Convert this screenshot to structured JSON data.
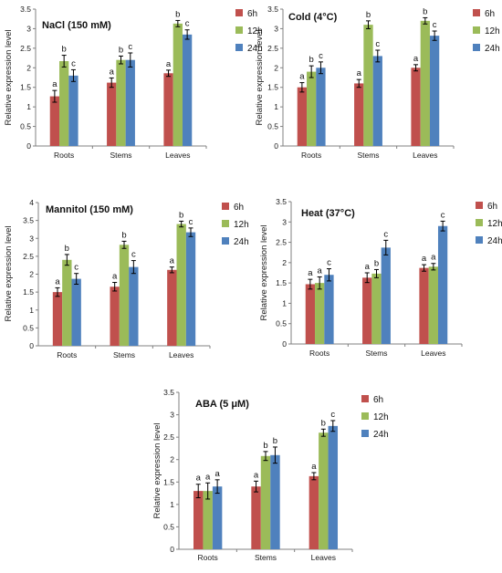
{
  "colors": {
    "series": [
      "#C0504D",
      "#9BBB59",
      "#4F81BD"
    ],
    "axis": "#808080",
    "text": "#111111"
  },
  "chart_data": [
    {
      "type": "bar",
      "title": "NaCl (150 mM)",
      "xlabel": "",
      "ylabel": "Relative expression level",
      "ylim": [
        0,
        3.5
      ],
      "yticks": [
        "0",
        "0.5",
        "1",
        "1.5",
        "2",
        "2.5",
        "3",
        "3.5"
      ],
      "categories": [
        "Roots",
        "Stems",
        "Leaves"
      ],
      "grid": false,
      "legend": "right",
      "series": [
        {
          "name": "6h",
          "values": [
            1.27,
            1.62,
            1.86
          ],
          "errors": [
            0.15,
            0.12,
            0.08
          ],
          "labels": [
            "a",
            "a",
            "a"
          ]
        },
        {
          "name": "12h",
          "values": [
            2.17,
            2.2,
            3.13
          ],
          "errors": [
            0.15,
            0.1,
            0.08
          ],
          "labels": [
            "b",
            "b",
            "b"
          ]
        },
        {
          "name": "24h",
          "values": [
            1.8,
            2.2,
            2.85
          ],
          "errors": [
            0.15,
            0.18,
            0.12
          ],
          "labels": [
            "c",
            "c",
            "c"
          ]
        }
      ]
    },
    {
      "type": "bar",
      "title": "Cold (4°C)",
      "xlabel": "",
      "ylabel": "Relative expression level",
      "ylim": [
        0,
        3.5
      ],
      "yticks": [
        "0",
        "0.5",
        "1",
        "1.5",
        "2",
        "2.5",
        "3",
        "3.5"
      ],
      "categories": [
        "Roots",
        "Stems",
        "Leaves"
      ],
      "grid": false,
      "legend": "right",
      "series": [
        {
          "name": "6h",
          "values": [
            1.5,
            1.6,
            2.0
          ],
          "errors": [
            0.12,
            0.1,
            0.08
          ],
          "labels": [
            "a",
            "a",
            "a"
          ]
        },
        {
          "name": "12h",
          "values": [
            1.9,
            3.1,
            3.2
          ],
          "errors": [
            0.15,
            0.1,
            0.08
          ],
          "labels": [
            "b",
            "b",
            "b"
          ]
        },
        {
          "name": "24h",
          "values": [
            2.0,
            2.3,
            2.82
          ],
          "errors": [
            0.15,
            0.15,
            0.12
          ],
          "labels": [
            "c",
            "c",
            "c"
          ]
        }
      ]
    },
    {
      "type": "bar",
      "title": "Mannitol (150 mM)",
      "xlabel": "",
      "ylabel": "Relative expression level",
      "ylim": [
        0,
        4
      ],
      "yticks": [
        "0",
        "0.5",
        "1",
        "1.5",
        "2",
        "2.5",
        "3",
        "3.5",
        "4"
      ],
      "categories": [
        "Roots",
        "Stems",
        "Leaves"
      ],
      "grid": false,
      "legend": "right",
      "series": [
        {
          "name": "6h",
          "values": [
            1.5,
            1.65,
            2.12
          ],
          "errors": [
            0.12,
            0.12,
            0.08
          ],
          "labels": [
            "a",
            "a",
            "a"
          ]
        },
        {
          "name": "12h",
          "values": [
            2.4,
            2.82,
            3.4
          ],
          "errors": [
            0.15,
            0.1,
            0.08
          ],
          "labels": [
            "b",
            "b",
            "b"
          ]
        },
        {
          "name": "24h",
          "values": [
            1.87,
            2.2,
            3.17
          ],
          "errors": [
            0.15,
            0.18,
            0.12
          ],
          "labels": [
            "c",
            "c",
            "c"
          ]
        }
      ]
    },
    {
      "type": "bar",
      "title": "Heat (37°C)",
      "xlabel": "",
      "ylabel": "Relative expression level",
      "ylim": [
        0,
        3.5
      ],
      "yticks": [
        "0",
        "0.5",
        "1",
        "1.5",
        "2",
        "2.5",
        "3",
        "3.5"
      ],
      "categories": [
        "Roots",
        "Stems",
        "Leaves"
      ],
      "grid": false,
      "legend": "right",
      "series": [
        {
          "name": "6h",
          "values": [
            1.47,
            1.63,
            1.87
          ],
          "errors": [
            0.12,
            0.12,
            0.08
          ],
          "labels": [
            "a",
            "a",
            "a"
          ]
        },
        {
          "name": "12h",
          "values": [
            1.5,
            1.73,
            1.9
          ],
          "errors": [
            0.15,
            0.1,
            0.08
          ],
          "labels": [
            "a",
            "b",
            "a"
          ]
        },
        {
          "name": "24h",
          "values": [
            1.7,
            2.37,
            2.9
          ],
          "errors": [
            0.15,
            0.18,
            0.12
          ],
          "labels": [
            "c",
            "c",
            "c"
          ]
        }
      ]
    },
    {
      "type": "bar",
      "title": "ABA (5 μM)",
      "xlabel": "",
      "ylabel": "Relative expression level",
      "ylim": [
        0,
        3.5
      ],
      "yticks": [
        "0",
        "0.5",
        "1",
        "1.5",
        "2",
        "2.5",
        "3",
        "3.5"
      ],
      "categories": [
        "Roots",
        "Stems",
        "Leaves"
      ],
      "grid": false,
      "legend": "right",
      "series": [
        {
          "name": "6h",
          "values": [
            1.3,
            1.4,
            1.63
          ],
          "errors": [
            0.15,
            0.12,
            0.08
          ],
          "labels": [
            "a",
            "a",
            "a"
          ]
        },
        {
          "name": "12h",
          "values": [
            1.3,
            2.08,
            2.6
          ],
          "errors": [
            0.18,
            0.1,
            0.08
          ],
          "labels": [
            "a",
            "b",
            "b"
          ]
        },
        {
          "name": "24h",
          "values": [
            1.4,
            2.1,
            2.75
          ],
          "errors": [
            0.15,
            0.18,
            0.12
          ],
          "labels": [
            "a",
            "b",
            "c"
          ]
        }
      ]
    }
  ]
}
